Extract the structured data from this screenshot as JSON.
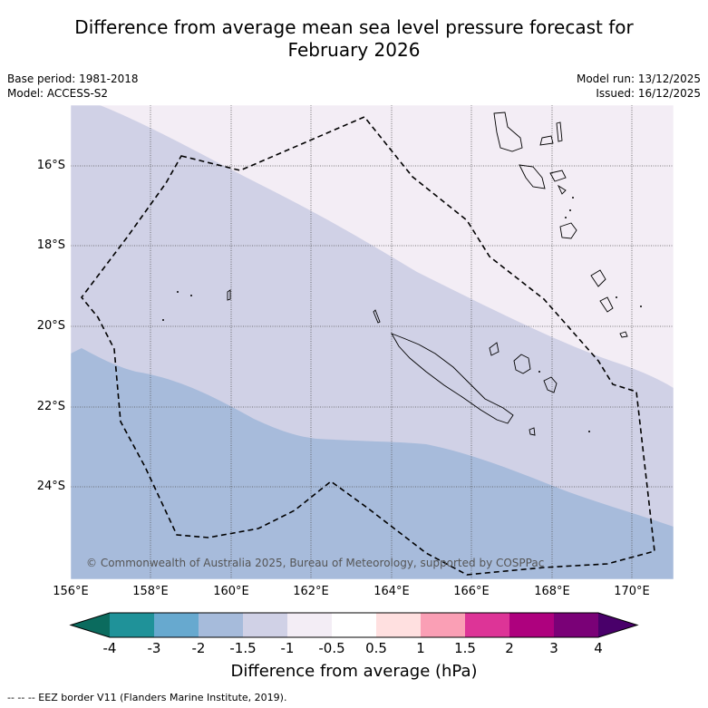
{
  "title_line1": "Difference from average mean sea level pressure forecast for",
  "title_line2": "February 2026",
  "base_period": "Base period: 1981-2018",
  "model": "Model: ACCESS-S2",
  "model_run": "Model run: 13/12/2025",
  "issued": "Issued: 16/12/2025",
  "credit": "© Commonwealth of Australia 2025, Bureau of Meteorology, supported by COSPPac",
  "legend_text": "--  --  -- EEZ border V11 (Flanders Marine Institute, 2019).",
  "lat_ticks": [
    "16°S",
    "18°S",
    "20°S",
    "22°S",
    "24°S"
  ],
  "lon_ticks": [
    "156°E",
    "158°E",
    "160°E",
    "162°E",
    "164°E",
    "166°E",
    "168°E",
    "170°E"
  ],
  "colorbar": {
    "label": "Difference from average (hPa)",
    "ticks": [
      "-4",
      "-3",
      "-2",
      "-1.5",
      "-1",
      "-0.5",
      "0.5",
      "1",
      "1.5",
      "2",
      "3",
      "4"
    ],
    "colors": [
      "#0b6b5e",
      "#1f9299",
      "#67a9cf",
      "#a6bbdb",
      "#d0d1e6",
      "#f3edf5",
      "#ffffff",
      "#ffe0e0",
      "#fa9fb5",
      "#dd3497",
      "#ae017e",
      "#7a0177",
      "#49006a"
    ]
  }
}
